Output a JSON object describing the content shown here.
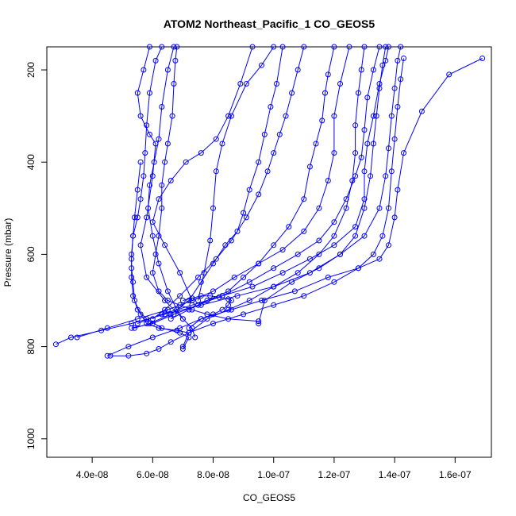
{
  "chart_data": {
    "type": "line",
    "title": "ATOM2 Northeast_Pacific_1 CO_GEOS5",
    "xlabel": "CO_GEOS5",
    "ylabel": "Pressure (mbar)",
    "xlim": [
      2.5e-08,
      1.72e-07
    ],
    "ylim": [
      1040,
      150
    ],
    "y_reversed": true,
    "grid": false,
    "x_ticks": [
      {
        "value": 4e-08,
        "label": "4.0e-08"
      },
      {
        "value": 6e-08,
        "label": "6.0e-08"
      },
      {
        "value": 8e-08,
        "label": "8.0e-08"
      },
      {
        "value": 1e-07,
        "label": "1.0e-07"
      },
      {
        "value": 1.2e-07,
        "label": "1.2e-07"
      },
      {
        "value": 1.4e-07,
        "label": "1.4e-07"
      },
      {
        "value": 1.6e-07,
        "label": "1.6e-07"
      }
    ],
    "y_ticks": [
      {
        "value": 200,
        "label": "200"
      },
      {
        "value": 400,
        "label": "400"
      },
      {
        "value": 600,
        "label": "600"
      },
      {
        "value": 800,
        "label": "800"
      },
      {
        "value": 1000,
        "label": "1000"
      }
    ],
    "series_color": "#0000ff",
    "marker": "open-circle",
    "series": [
      {
        "x": [
          6.3e-08,
          6.1e-08,
          5.9e-08,
          5.8e-08,
          5.75e-08,
          5.7e-08,
          5.6e-08,
          5.5e-08,
          5.35e-08,
          5.3e-08,
          5.3e-08,
          5.35e-08,
          5.4e-08,
          5.6e-08,
          5.8e-08,
          6.2e-08,
          6.8e-08,
          7.2e-08
        ],
        "y": [
          150,
          180,
          250,
          320,
          380,
          430,
          480,
          520,
          560,
          600,
          630,
          660,
          700,
          730,
          750,
          760,
          765,
          770
        ]
      },
      {
        "x": [
          6.7e-08,
          6.5e-08,
          6.3e-08,
          6.2e-08,
          6.05e-08,
          5.9e-08,
          5.85e-08,
          6e-08,
          6.2e-08,
          6.5e-08,
          6.8e-08,
          7e-08
        ],
        "y": [
          150,
          200,
          280,
          350,
          400,
          450,
          500,
          560,
          620,
          680,
          720,
          740
        ]
      },
      {
        "x": [
          6.8e-08,
          6.75e-08,
          6.7e-08,
          6.65e-08,
          6.5e-08,
          6.4e-08,
          6.3e-08,
          6.3e-08,
          6.2e-08,
          6.1e-08,
          6e-08,
          6.2e-08,
          6.5e-08,
          6.9e-08,
          7.3e-08,
          7.8e-08,
          8.5e-08,
          9.5e-08
        ],
        "y": [
          150,
          180,
          230,
          300,
          360,
          400,
          450,
          500,
          560,
          600,
          640,
          680,
          700,
          710,
          720,
          730,
          740,
          745
        ]
      },
      {
        "x": [
          5.9e-08,
          5.7e-08,
          5.5e-08,
          5.6e-08,
          5.9e-08,
          6.1e-08,
          6e-08,
          5.8e-08,
          5.6e-08,
          5.8e-08,
          6.4e-08,
          7e-08,
          7.3e-08,
          7.4e-08
        ],
        "y": [
          150,
          200,
          250,
          300,
          340,
          360,
          430,
          520,
          580,
          650,
          700,
          740,
          760,
          780
        ]
      },
      {
        "x": [
          9.3e-08,
          8.9e-08,
          8.5e-08,
          8.1e-08,
          7.6e-08,
          7.1e-08,
          6.6e-08,
          6.2e-08,
          6e-08,
          6.4e-08,
          6.9e-08,
          7.3e-08
        ],
        "y": [
          150,
          230,
          300,
          350,
          380,
          400,
          440,
          480,
          530,
          580,
          640,
          700
        ]
      },
      {
        "x": [
          1e-07,
          9.6e-08,
          9.1e-08,
          8.6e-08,
          8.3e-08,
          8.1e-08,
          8e-08,
          7.9e-08,
          7.7e-08,
          7.5e-08
        ],
        "y": [
          150,
          190,
          230,
          300,
          360,
          420,
          500,
          570,
          640,
          700
        ]
      },
      {
        "x": [
          1.03e-07,
          1.01e-07,
          9.9e-08,
          9.7e-08,
          9.5e-08,
          9.2e-08,
          9e-08,
          8.8e-08,
          8.4e-08,
          8e-08,
          7.6e-08,
          7.2e-08,
          6.6e-08,
          5.9e-08,
          5.4e-08
        ],
        "y": [
          150,
          230,
          280,
          340,
          400,
          460,
          510,
          550,
          580,
          620,
          660,
          700,
          730,
          750,
          760
        ]
      },
      {
        "x": [
          1.1e-07,
          1.08e-07,
          1.06e-07,
          1.04e-07,
          1.02e-07,
          1e-07,
          9.8e-08,
          9.5e-08,
          9.1e-08,
          8.6e-08,
          8.1e-08,
          7.5e-08,
          6.9e-08,
          6.4e-08,
          6e-08
        ],
        "y": [
          150,
          200,
          250,
          300,
          340,
          380,
          420,
          470,
          520,
          570,
          610,
          650,
          690,
          720,
          740
        ]
      },
      {
        "x": [
          1.2e-07,
          1.18e-07,
          1.17e-07,
          1.16e-07,
          1.14e-07,
          1.12e-07,
          1.1e-07,
          1.05e-07,
          1e-07,
          9.5e-08,
          9e-08,
          8.5e-08,
          7.8e-08,
          7.2e-08,
          6.6e-08
        ],
        "y": [
          150,
          210,
          250,
          310,
          360,
          410,
          480,
          540,
          580,
          620,
          650,
          680,
          700,
          720,
          740
        ]
      },
      {
        "x": [
          1.25e-07,
          1.22e-07,
          1.2e-07,
          1.2e-07,
          1.18e-07,
          1.15e-07,
          1.1e-07,
          1.03e-07,
          9.5e-08,
          8.7e-08,
          8e-08,
          7.3e-08,
          6.5e-08,
          5.5e-08,
          4.5e-08,
          3.5e-08
        ],
        "y": [
          150,
          230,
          300,
          380,
          440,
          500,
          550,
          590,
          620,
          650,
          680,
          700,
          720,
          740,
          760,
          780
        ]
      },
      {
        "x": [
          1.35e-07,
          1.33e-07,
          1.31e-07,
          1.3e-07,
          1.29e-07,
          1.27e-07,
          1.24e-07,
          1.2e-07,
          1.15e-07,
          1.08e-07,
          1e-07,
          9.2e-08,
          8.3e-08,
          7.5e-08,
          6.7e-08,
          6e-08,
          5.3e-08
        ],
        "y": [
          150,
          200,
          260,
          330,
          390,
          430,
          480,
          530,
          570,
          600,
          630,
          660,
          690,
          710,
          730,
          750,
          760
        ]
      },
      {
        "x": [
          1.38e-07,
          1.37e-07,
          1.35e-07,
          1.33e-07,
          1.31e-07,
          1.3e-07,
          1.3e-07,
          1.27e-07,
          1.2e-07,
          1.12e-07,
          1.03e-07,
          9.3e-08,
          8.3e-08,
          7.3e-08,
          6.3e-08,
          5.5e-08
        ],
        "y": [
          150,
          180,
          230,
          300,
          360,
          420,
          480,
          540,
          580,
          610,
          640,
          670,
          690,
          710,
          730,
          750
        ]
      },
      {
        "x": [
          1.42e-07,
          1.41e-07,
          1.4e-07,
          1.39e-07,
          1.38e-07,
          1.37e-07,
          1.35e-07,
          1.3e-07,
          1.22e-07,
          1.12e-07,
          1e-07,
          8.8e-08,
          7.6e-08,
          6.4e-08,
          5.3e-08,
          4.3e-08,
          3.3e-08,
          2.8e-08
        ],
        "y": [
          150,
          180,
          240,
          300,
          370,
          430,
          500,
          560,
          600,
          640,
          670,
          690,
          710,
          730,
          750,
          765,
          780,
          795
        ]
      },
      {
        "x": [
          1.69e-07,
          1.58e-07,
          1.49e-07,
          1.43e-07,
          1.41e-07,
          1.4e-07,
          1.38e-07,
          1.35e-07,
          1.28e-07,
          1.18e-07,
          1.07e-07,
          9.6e-08,
          8.6e-08,
          7.6e-08,
          6.9e-08,
          6e-08,
          5.2e-08,
          4.5e-08
        ],
        "y": [
          175,
          210,
          290,
          380,
          460,
          520,
          580,
          610,
          630,
          650,
          680,
          700,
          720,
          740,
          760,
          780,
          800,
          820
        ]
      },
      {
        "x": [
          1.43e-07,
          1.42e-07,
          1.41e-07,
          1.4e-07,
          1.39e-07,
          1.38e-07,
          1.36e-07,
          1.33e-07,
          1.28e-07,
          1.2e-07,
          1.1e-07,
          1e-07,
          9e-08,
          8e-08,
          7.2e-08,
          6.6e-08,
          6.2e-08,
          5.8e-08,
          5.2e-08,
          4.6e-08
        ],
        "y": [
          175,
          220,
          280,
          350,
          420,
          500,
          560,
          600,
          630,
          660,
          690,
          710,
          730,
          750,
          770,
          790,
          805,
          815,
          820,
          820
        ]
      },
      {
        "x": [
          1.37e-07,
          1.36e-07,
          1.35e-07,
          1.34e-07,
          1.33e-07,
          1.32e-07,
          1.3e-07,
          1.27e-07,
          1.22e-07,
          1.15e-07,
          1.06e-07,
          9.7e-08,
          9.5e-08
        ],
        "y": [
          150,
          190,
          240,
          300,
          360,
          430,
          500,
          560,
          600,
          630,
          660,
          700,
          750
        ]
      },
      {
        "x": [
          1.3e-07,
          1.29e-07,
          1.28e-07,
          1.27e-07,
          1.27e-07,
          1.26e-07,
          1.24e-07,
          1.2e-07,
          1.15e-07,
          1.08e-07,
          1e-07,
          9.2e-08,
          8.5e-08,
          7.8e-08,
          7.2e-08,
          7e-08
        ],
        "y": [
          150,
          200,
          250,
          320,
          380,
          440,
          500,
          560,
          600,
          640,
          670,
          700,
          720,
          740,
          770,
          800
        ]
      },
      {
        "x": [
          5.6e-08,
          5.5e-08,
          5.4e-08,
          5.35e-08,
          5.3e-08,
          5.3e-08,
          5.35e-08,
          5.5e-08,
          5.8e-08,
          6.3e-08,
          6.9e-08,
          7.2e-08,
          7e-08
        ],
        "y": [
          400,
          460,
          520,
          560,
          610,
          650,
          690,
          720,
          740,
          760,
          770,
          780,
          805
        ]
      },
      {
        "x": [
          7e-08,
          7.3e-08,
          7.6e-08,
          7.9e-08,
          8.2e-08,
          8.5e-08,
          8.6e-08,
          8.5e-08,
          8.3e-08,
          8e-08,
          7.6e-08,
          7.2e-08
        ],
        "y": [
          700,
          695,
          690,
          690,
          693,
          697,
          700,
          710,
          720,
          730,
          740,
          760
        ]
      }
    ]
  }
}
